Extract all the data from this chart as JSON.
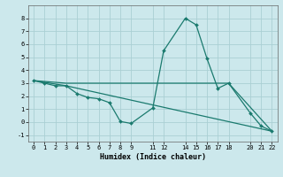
{
  "xlabel": "Humidex (Indice chaleur)",
  "bg_color": "#cce8ec",
  "grid_color": "#aacfd4",
  "line_color": "#1a7a6e",
  "line1_x": [
    0,
    1,
    2,
    3,
    4,
    5,
    6,
    7,
    8,
    9,
    11,
    12,
    14,
    15,
    16,
    17,
    18,
    20,
    21,
    22
  ],
  "line1_y": [
    3.2,
    3.0,
    2.8,
    2.8,
    2.2,
    1.9,
    1.8,
    1.5,
    0.05,
    -0.1,
    1.1,
    5.5,
    8.0,
    7.5,
    4.9,
    2.6,
    3.0,
    0.7,
    -0.3,
    -0.7
  ],
  "line2_x": [
    0,
    3,
    18,
    22
  ],
  "line2_y": [
    3.2,
    3.0,
    3.0,
    -0.7
  ],
  "line3_x": [
    0,
    3,
    22
  ],
  "line3_y": [
    3.2,
    2.8,
    -0.7
  ],
  "xlim": [
    -0.5,
    22.5
  ],
  "ylim": [
    -1.5,
    9.0
  ],
  "xticks": [
    0,
    1,
    2,
    3,
    4,
    5,
    6,
    7,
    8,
    9,
    11,
    12,
    14,
    15,
    16,
    17,
    18,
    20,
    21,
    22
  ],
  "yticks": [
    -1,
    0,
    1,
    2,
    3,
    4,
    5,
    6,
    7,
    8
  ],
  "xlabel_fontsize": 6.0,
  "tick_fontsize": 5.0
}
